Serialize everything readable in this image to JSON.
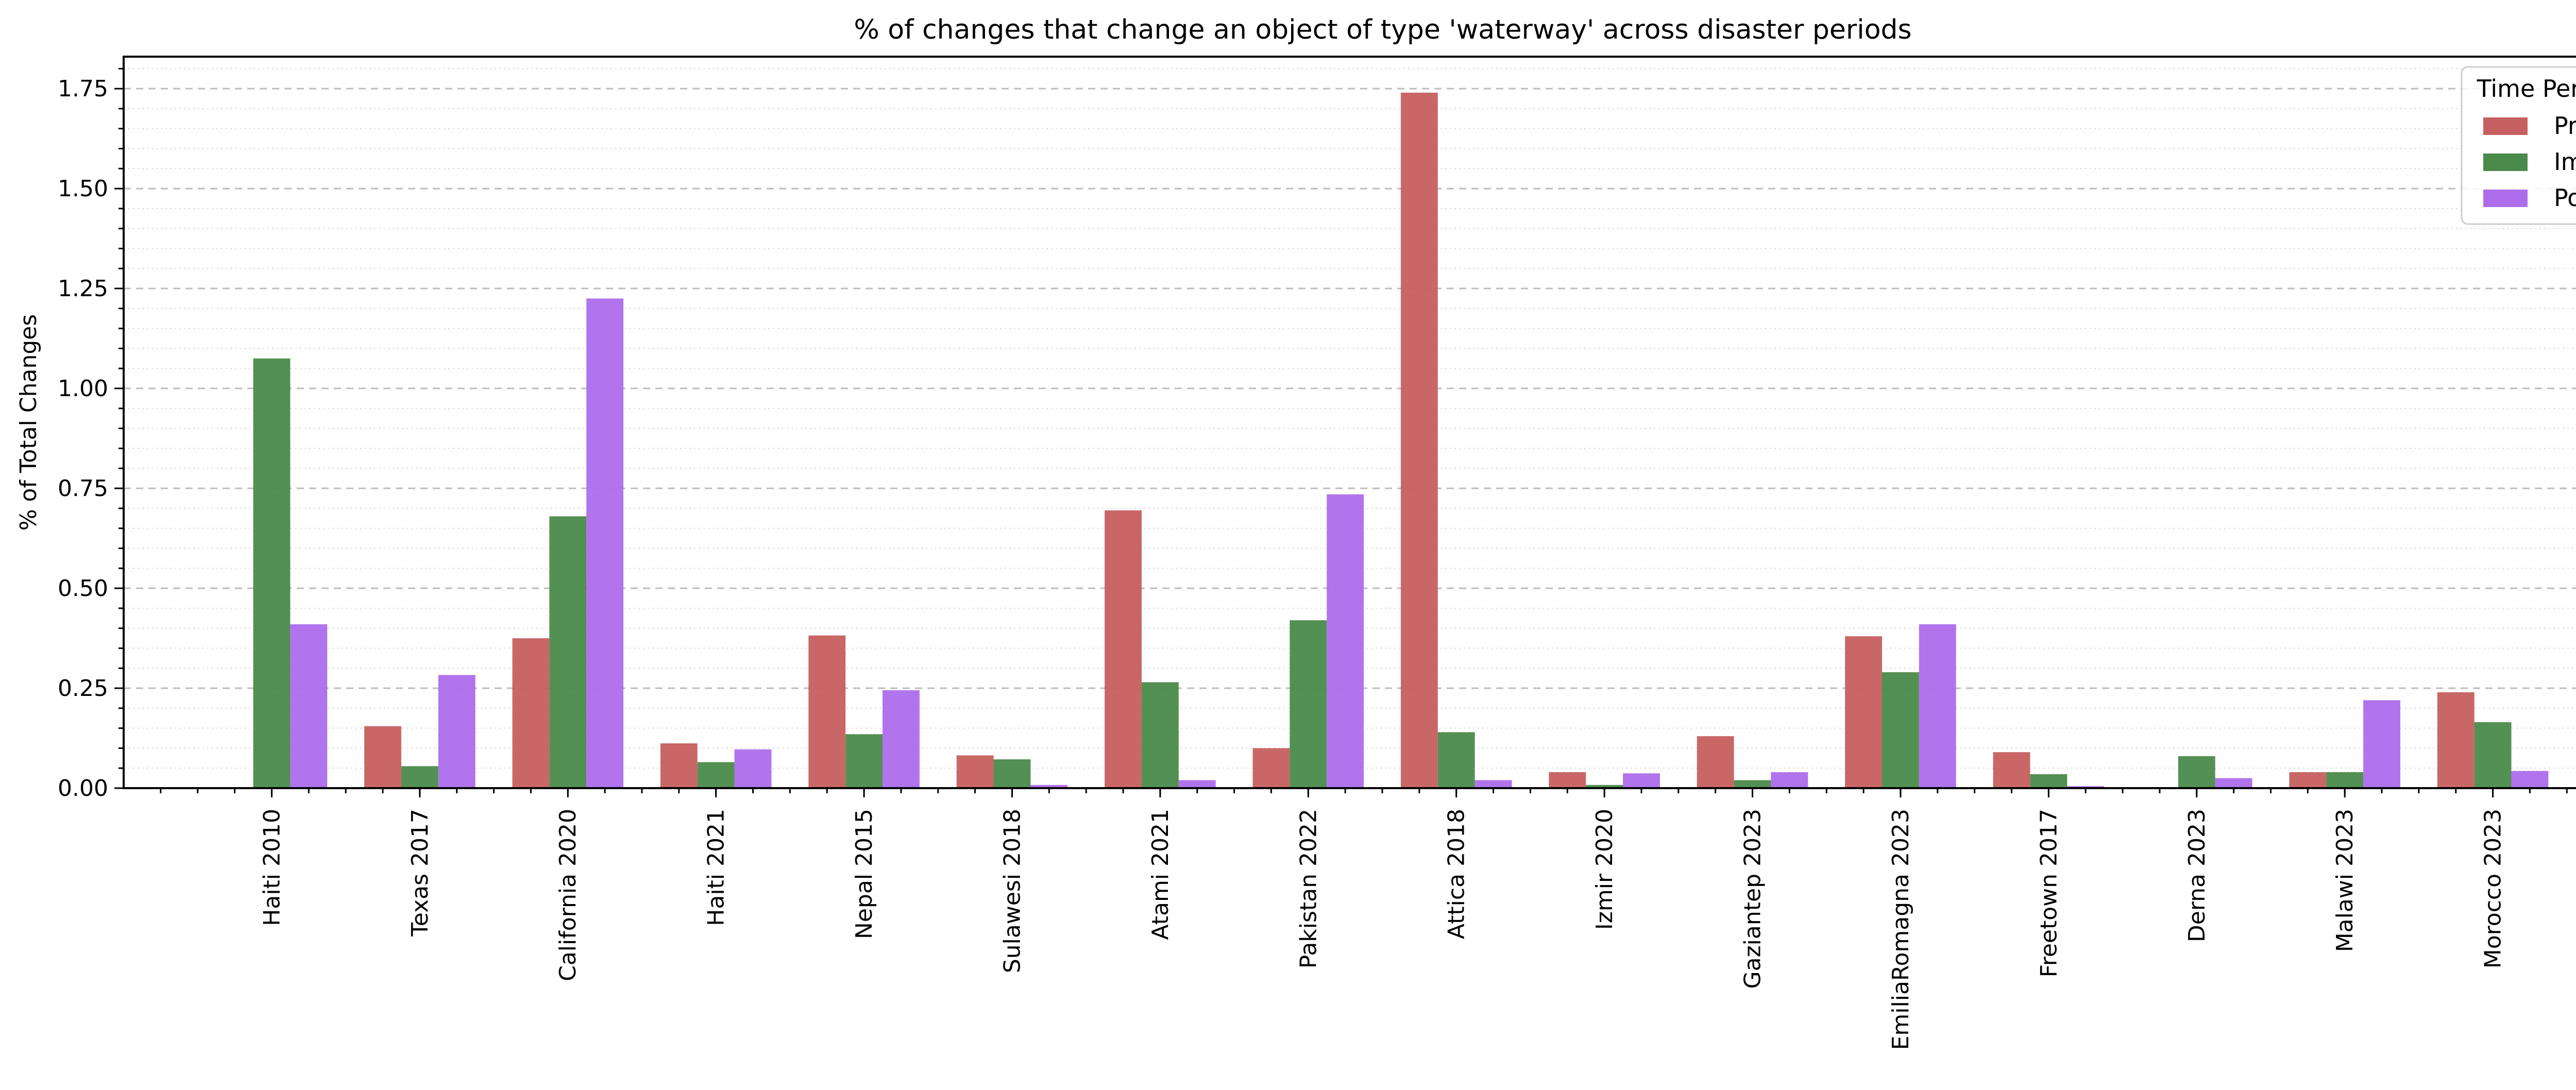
{
  "chart_data": {
    "type": "bar",
    "title": "% of changes that change an object of type 'waterway' across disaster periods",
    "xlabel": "",
    "ylabel": "% of Total Changes",
    "ylim": [
      0,
      1.83
    ],
    "yticks": [
      "0.00",
      "0.25",
      "0.50",
      "0.75",
      "1.00",
      "1.25",
      "1.50",
      "1.75"
    ],
    "ytick_values": [
      0,
      0.25,
      0.5,
      0.75,
      1.0,
      1.25,
      1.5,
      1.75
    ],
    "grid": "horizontal dashed major, dotted minor",
    "legend": {
      "title": "Time Period",
      "placement": "top-right"
    },
    "categories": [
      "Haiti 2010",
      "Texas 2017",
      "California 2020",
      "Haiti 2021",
      "Nepal 2015",
      "Sulawesi 2018",
      "Atami 2021",
      "Pakistan 2022",
      "Attica 2018",
      "Izmir 2020",
      "Gaziantep 2023",
      "EmiliaRomagna 2023",
      "Freetown 2017",
      "Derna 2023",
      "Malawi 2023",
      "Morocco 2023"
    ],
    "series": [
      {
        "name": "Pre",
        "color": "#c65f5f",
        "values": [
          0.0,
          0.155,
          0.375,
          0.112,
          0.382,
          0.082,
          0.695,
          0.1,
          1.74,
          0.04,
          0.13,
          0.38,
          0.09,
          0.0,
          0.04,
          0.24
        ]
      },
      {
        "name": "Imm",
        "color": "#4a8a4a",
        "values": [
          1.075,
          0.055,
          0.68,
          0.065,
          0.135,
          0.072,
          0.265,
          0.42,
          0.14,
          0.008,
          0.02,
          0.29,
          0.035,
          0.08,
          0.04,
          0.165
        ]
      },
      {
        "name": "Post",
        "color": "#ad6deb",
        "values": [
          0.41,
          0.283,
          1.225,
          0.097,
          0.245,
          0.008,
          0.02,
          0.735,
          0.02,
          0.037,
          0.04,
          0.41,
          0.005,
          0.025,
          0.22,
          0.043
        ]
      }
    ]
  }
}
